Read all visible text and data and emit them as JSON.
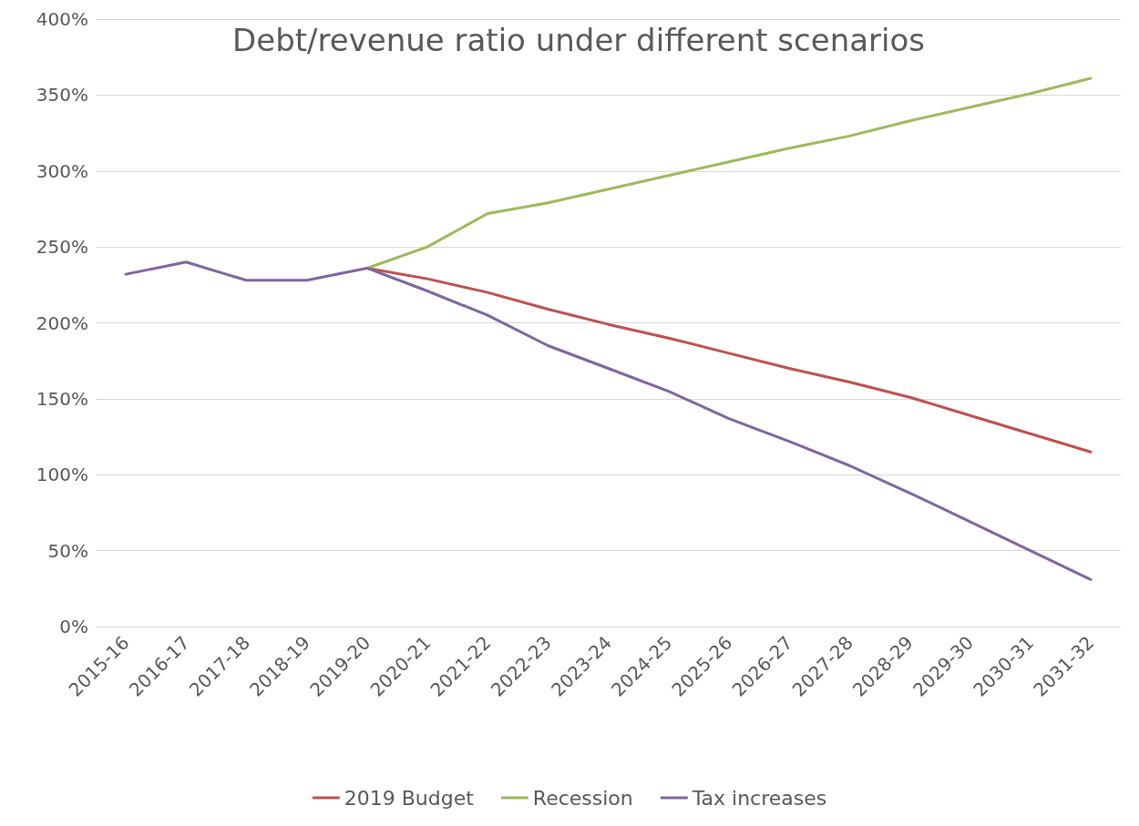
{
  "chart_data": {
    "type": "line",
    "title": "Debt/revenue ratio under different scenarios",
    "categories": [
      "2015-16",
      "2016-17",
      "2017-18",
      "2018-19",
      "2019-20",
      "2020-21",
      "2021-22",
      "2022-23",
      "2023-24",
      "2024-25",
      "2025-26",
      "2026-27",
      "2027-28",
      "2028-29",
      "2029-30",
      "2030-31",
      "2031-32"
    ],
    "series": [
      {
        "name": "2019 Budget",
        "color": "#c0504d",
        "values": [
          null,
          null,
          null,
          null,
          236,
          229,
          220,
          209,
          199,
          190,
          180,
          170,
          161,
          151,
          139,
          127,
          115
        ]
      },
      {
        "name": "Recession",
        "color": "#9bbb59",
        "values": [
          null,
          null,
          null,
          null,
          236,
          250,
          272,
          279,
          288,
          297,
          306,
          315,
          323,
          333,
          342,
          351,
          361
        ]
      },
      {
        "name": "Tax increases",
        "color": "#8064a2",
        "values": [
          232,
          240,
          228,
          228,
          236,
          221,
          205,
          185,
          170,
          155,
          137,
          122,
          106,
          88,
          69,
          50,
          31
        ]
      }
    ],
    "ylim": [
      0,
      400
    ],
    "yticks": [
      {
        "value": 0,
        "label": "0%"
      },
      {
        "value": 50,
        "label": "50%"
      },
      {
        "value": 100,
        "label": "100%"
      },
      {
        "value": 150,
        "label": "150%"
      },
      {
        "value": 200,
        "label": "200%"
      },
      {
        "value": 250,
        "label": "250%"
      },
      {
        "value": 300,
        "label": "300%"
      },
      {
        "value": 350,
        "label": "350%"
      },
      {
        "value": 400,
        "label": "400%"
      }
    ],
    "grid": "y",
    "legend": "bottom",
    "marker": "none",
    "line_style": "solid"
  }
}
